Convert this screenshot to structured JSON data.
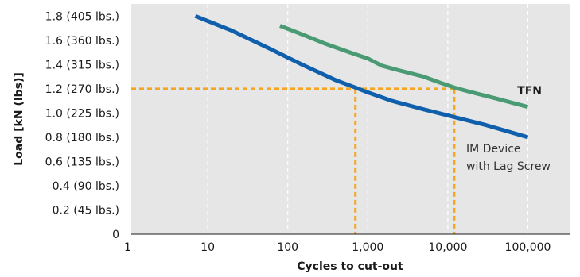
{
  "chart_data": {
    "type": "line",
    "xlabel": "Cycles to cut-out",
    "ylabel": "Load [kN (lbs)]",
    "x_scale": "log",
    "xlim": [
      1,
      200000
    ],
    "ylim": [
      0,
      1.9
    ],
    "x_ticks": [
      {
        "value": 1,
        "label": "1"
      },
      {
        "value": 10,
        "label": "10"
      },
      {
        "value": 100,
        "label": "100"
      },
      {
        "value": 1000,
        "label": "1,000"
      },
      {
        "value": 10000,
        "label": "10,000"
      },
      {
        "value": 100000,
        "label": "100,000"
      }
    ],
    "y_ticks": [
      {
        "value": 0,
        "label": "0"
      },
      {
        "value": 0.2,
        "label": "0.2 (45 lbs.)"
      },
      {
        "value": 0.4,
        "label": "0.4 (90 lbs.)"
      },
      {
        "value": 0.6,
        "label": "0.6 (135 lbs.)"
      },
      {
        "value": 0.8,
        "label": "0.8 (180 lbs.)"
      },
      {
        "value": 1.0,
        "label": "1.0 (225 lbs.)"
      },
      {
        "value": 1.2,
        "label": "1.2 (270 lbs.)"
      },
      {
        "value": 1.4,
        "label": "1.4 (315 lbs.)"
      },
      {
        "value": 1.6,
        "label": "1.6 (360 lbs.)"
      },
      {
        "value": 1.8,
        "label": "1.8 (405 lbs.)"
      }
    ],
    "grid": "vertical dashed",
    "background": "#e6e6e6",
    "series": [
      {
        "name": "TFN",
        "color": "#4a9a74",
        "label_lines": [
          "TFN"
        ],
        "x": [
          80,
          150,
          300,
          600,
          1000,
          1500,
          2500,
          5000,
          8000,
          12000,
          20000,
          40000,
          100000
        ],
        "y": [
          1.72,
          1.65,
          1.57,
          1.5,
          1.45,
          1.39,
          1.35,
          1.3,
          1.25,
          1.21,
          1.17,
          1.12,
          1.05
        ]
      },
      {
        "name": "IM Device with Lag Screw",
        "color": "#0f5fad",
        "label_lines": [
          "IM Device",
          "with Lag Screw"
        ],
        "x": [
          7,
          20,
          60,
          150,
          400,
          700,
          1000,
          2000,
          5000,
          10000,
          30000,
          100000
        ],
        "y": [
          1.8,
          1.68,
          1.53,
          1.4,
          1.27,
          1.21,
          1.17,
          1.1,
          1.03,
          0.98,
          0.9,
          0.8
        ]
      }
    ],
    "reference_lines": [
      {
        "axis": "y",
        "value": 1.2,
        "color": "#f5a623",
        "x_to": 12000
      },
      {
        "axis": "x",
        "value": 700,
        "color": "#f5a623",
        "y_to": 1.2
      },
      {
        "axis": "x",
        "value": 12000,
        "color": "#f5a623",
        "y_to": 1.2
      }
    ]
  }
}
